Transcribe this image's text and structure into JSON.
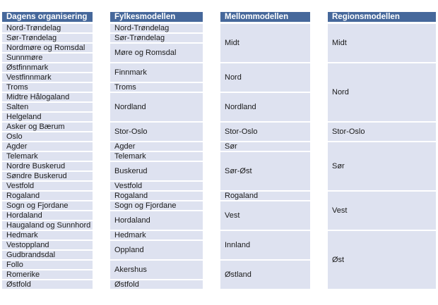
{
  "colors": {
    "background": "#FFFFFF",
    "header_bg": "#46689B",
    "header_text": "#FFFFFF",
    "cell_bg": "#DEE2F0",
    "cell_text": "#1A1A1A"
  },
  "table": {
    "columns": [
      {
        "header": "Dagens organisering",
        "cells": [
          {
            "label": "Nord-Trøndelag",
            "span": 1
          },
          {
            "label": "Sør-Trøndelag",
            "span": 1
          },
          {
            "label": "Nordmøre og Romsdal",
            "span": 1
          },
          {
            "label": "Sunnmøre",
            "span": 1
          },
          {
            "label": "Østfinnmark",
            "span": 1
          },
          {
            "label": "Vestfinnmark",
            "span": 1
          },
          {
            "label": "Troms",
            "span": 1
          },
          {
            "label": "Midtre Hålogaland",
            "span": 1
          },
          {
            "label": "Salten",
            "span": 1
          },
          {
            "label": "Helgeland",
            "span": 1
          },
          {
            "label": "Asker og Bærum",
            "span": 1
          },
          {
            "label": "Oslo",
            "span": 1
          },
          {
            "label": "Agder",
            "span": 1
          },
          {
            "label": "Telemark",
            "span": 1
          },
          {
            "label": "Nordre Buskerud",
            "span": 1
          },
          {
            "label": "Søndre Buskerud",
            "span": 1
          },
          {
            "label": "Vestfold",
            "span": 1
          },
          {
            "label": "Rogaland",
            "span": 1
          },
          {
            "label": "Sogn og Fjordane",
            "span": 1
          },
          {
            "label": "Hordaland",
            "span": 1
          },
          {
            "label": "Haugaland og  Sunnhord .",
            "span": 1
          },
          {
            "label": "Hedmark",
            "span": 1
          },
          {
            "label": "Vestoppland",
            "span": 1
          },
          {
            "label": "Gudbrandsdal",
            "span": 1
          },
          {
            "label": "Follo",
            "span": 1
          },
          {
            "label": "Romerike",
            "span": 1
          },
          {
            "label": "Østfold",
            "span": 1
          }
        ]
      },
      {
        "header": "Fylkesmodellen",
        "cells": [
          {
            "label": "Nord-Trøndelag",
            "span": 1
          },
          {
            "label": "Sør-Trøndelag",
            "span": 1
          },
          {
            "label": "Møre og Romsdal",
            "span": 2
          },
          {
            "label": "Finnmark",
            "span": 2
          },
          {
            "label": "Troms",
            "span": 1
          },
          {
            "label": "Nordland",
            "span": 3
          },
          {
            "label": "Stor-Oslo",
            "span": 2
          },
          {
            "label": "Agder",
            "span": 1
          },
          {
            "label": "Telemark",
            "span": 1
          },
          {
            "label": "Buskerud",
            "span": 2
          },
          {
            "label": "Vestfold",
            "span": 1
          },
          {
            "label": "Rogaland",
            "span": 1
          },
          {
            "label": "Sogn og Fjordane",
            "span": 1
          },
          {
            "label": "Hordaland",
            "span": 2
          },
          {
            "label": "Hedmark",
            "span": 1
          },
          {
            "label": "Oppland",
            "span": 2
          },
          {
            "label": "Akershus",
            "span": 2
          },
          {
            "label": "Østfold",
            "span": 1
          }
        ]
      },
      {
        "header": "Mellommodellen",
        "cells": [
          {
            "label": "Midt",
            "span": 4
          },
          {
            "label": "Nord",
            "span": 3
          },
          {
            "label": "Nordland",
            "span": 3
          },
          {
            "label": "Stor-Oslo",
            "span": 2
          },
          {
            "label": "Sør",
            "span": 1
          },
          {
            "label": "Sør-Øst",
            "span": 4
          },
          {
            "label": "Rogaland",
            "span": 1
          },
          {
            "label": "Vest",
            "span": 3
          },
          {
            "label": "Innland",
            "span": 3
          },
          {
            "label": "Østland",
            "span": 3
          }
        ]
      },
      {
        "header": "Regionsmodellen",
        "cells": [
          {
            "label": "Midt",
            "span": 4
          },
          {
            "label": "Nord",
            "span": 6
          },
          {
            "label": "Stor-Oslo",
            "span": 2
          },
          {
            "label": "Sør",
            "span": 5
          },
          {
            "label": "Vest",
            "span": 4
          },
          {
            "label": "Øst",
            "span": 6
          }
        ]
      }
    ]
  }
}
